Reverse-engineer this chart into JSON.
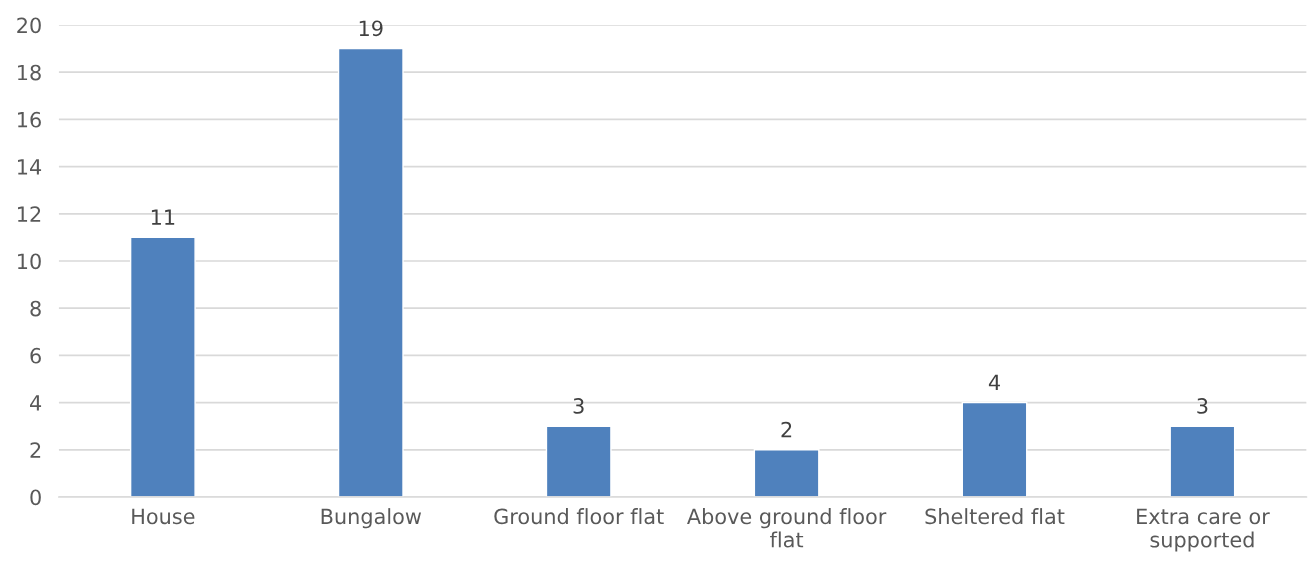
{
  "chart_data": {
    "type": "bar",
    "categories": [
      "House",
      "Bungalow",
      "Ground floor flat",
      "Above ground floor flat",
      "Sheltered flat",
      "Extra care or supported"
    ],
    "values": [
      11,
      19,
      3,
      2,
      4,
      3
    ],
    "color": "#4f81bd",
    "ylim": [
      0,
      20
    ],
    "yticks": [
      0,
      2,
      4,
      6,
      8,
      10,
      12,
      14,
      16,
      18,
      20
    ],
    "grid": "y",
    "data_labels": true,
    "legend": false
  }
}
